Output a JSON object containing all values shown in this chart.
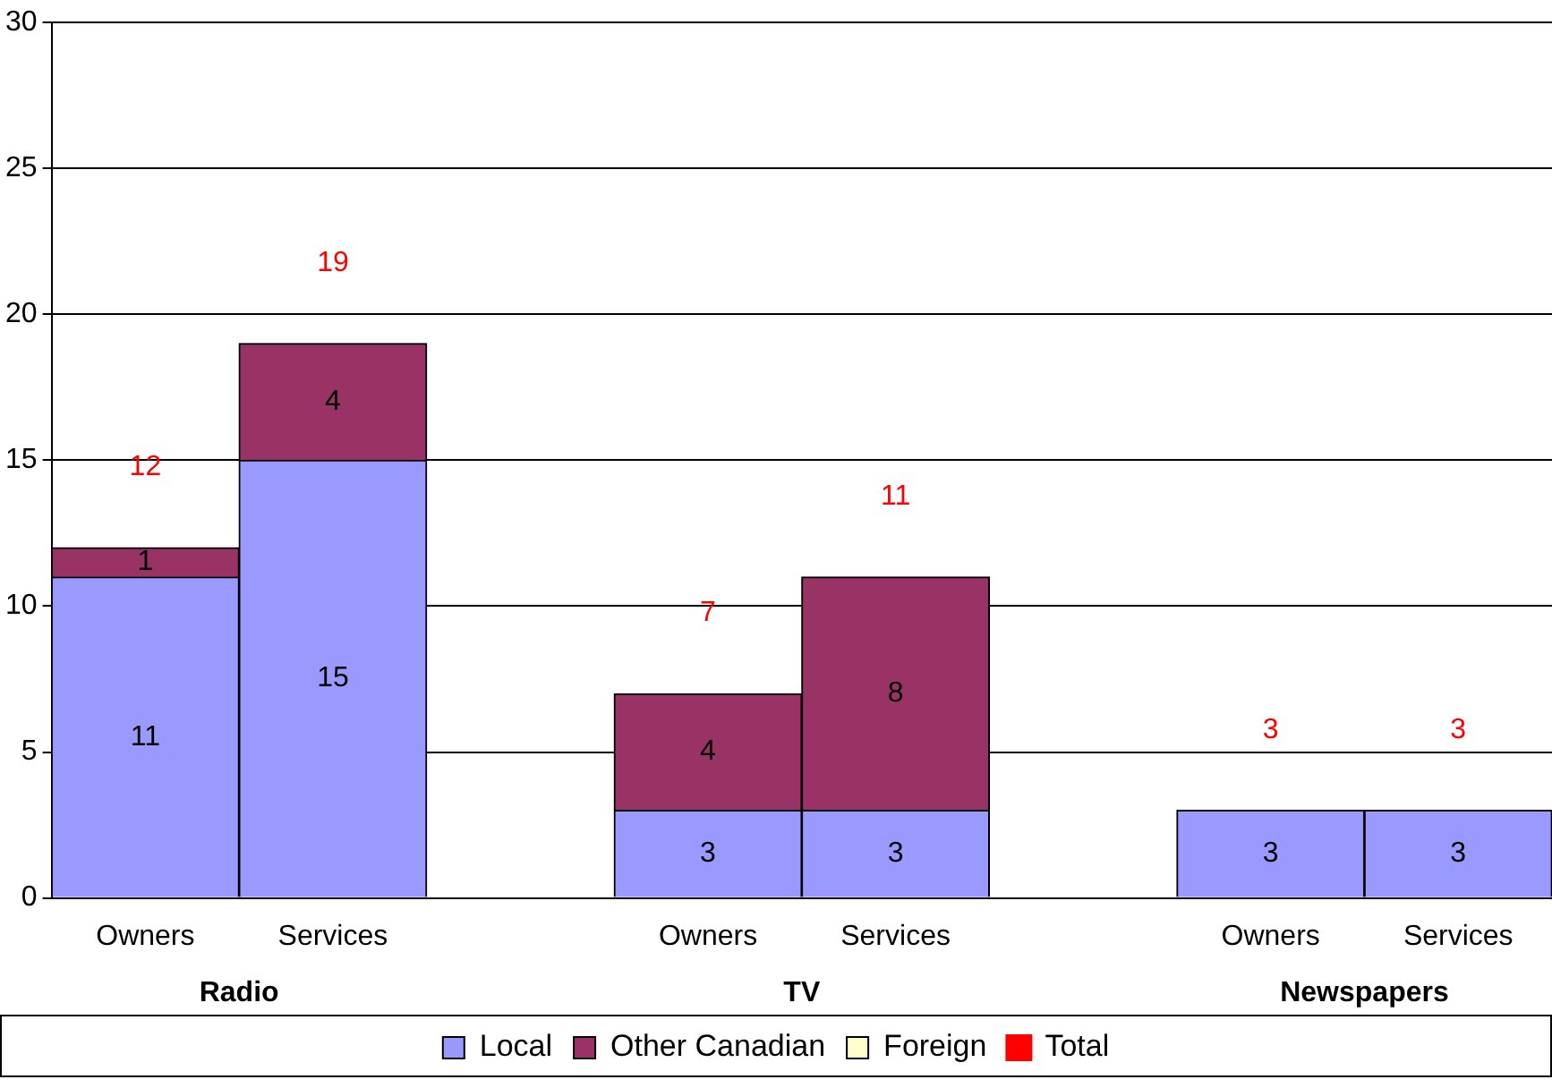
{
  "chart_data": {
    "type": "bar",
    "stacked": true,
    "categories": [
      "Owners",
      "Services",
      null,
      "Owners",
      "Services",
      null,
      "Owners",
      "Services"
    ],
    "series": [
      {
        "name": "Local",
        "color": "#9999ff",
        "values": [
          11,
          15,
          null,
          3,
          3,
          null,
          3,
          3
        ]
      },
      {
        "name": "Other Canadian",
        "color": "#993366",
        "values": [
          1,
          4,
          null,
          4,
          8,
          null,
          null,
          null
        ]
      },
      {
        "name": "Foreign",
        "color": "#ffffcc",
        "values": [
          null,
          null,
          null,
          null,
          null,
          null,
          null,
          null
        ]
      },
      {
        "name": "Total",
        "color": "#ff0000",
        "type": "scatter",
        "values": [
          null,
          null,
          null,
          null,
          null,
          null,
          null,
          null
        ]
      }
    ],
    "totals": [
      "12",
      "19",
      null,
      "7",
      "11",
      null,
      "3",
      "3"
    ],
    "annotations": [
      "Radio",
      "TV",
      "Newspapers"
    ],
    "ylim": [
      0,
      30
    ],
    "yticks": [
      0,
      5,
      10,
      15,
      20,
      25,
      30
    ],
    "grid": "y",
    "legend": "bottom",
    "marker": "none",
    "data_labels": true
  }
}
